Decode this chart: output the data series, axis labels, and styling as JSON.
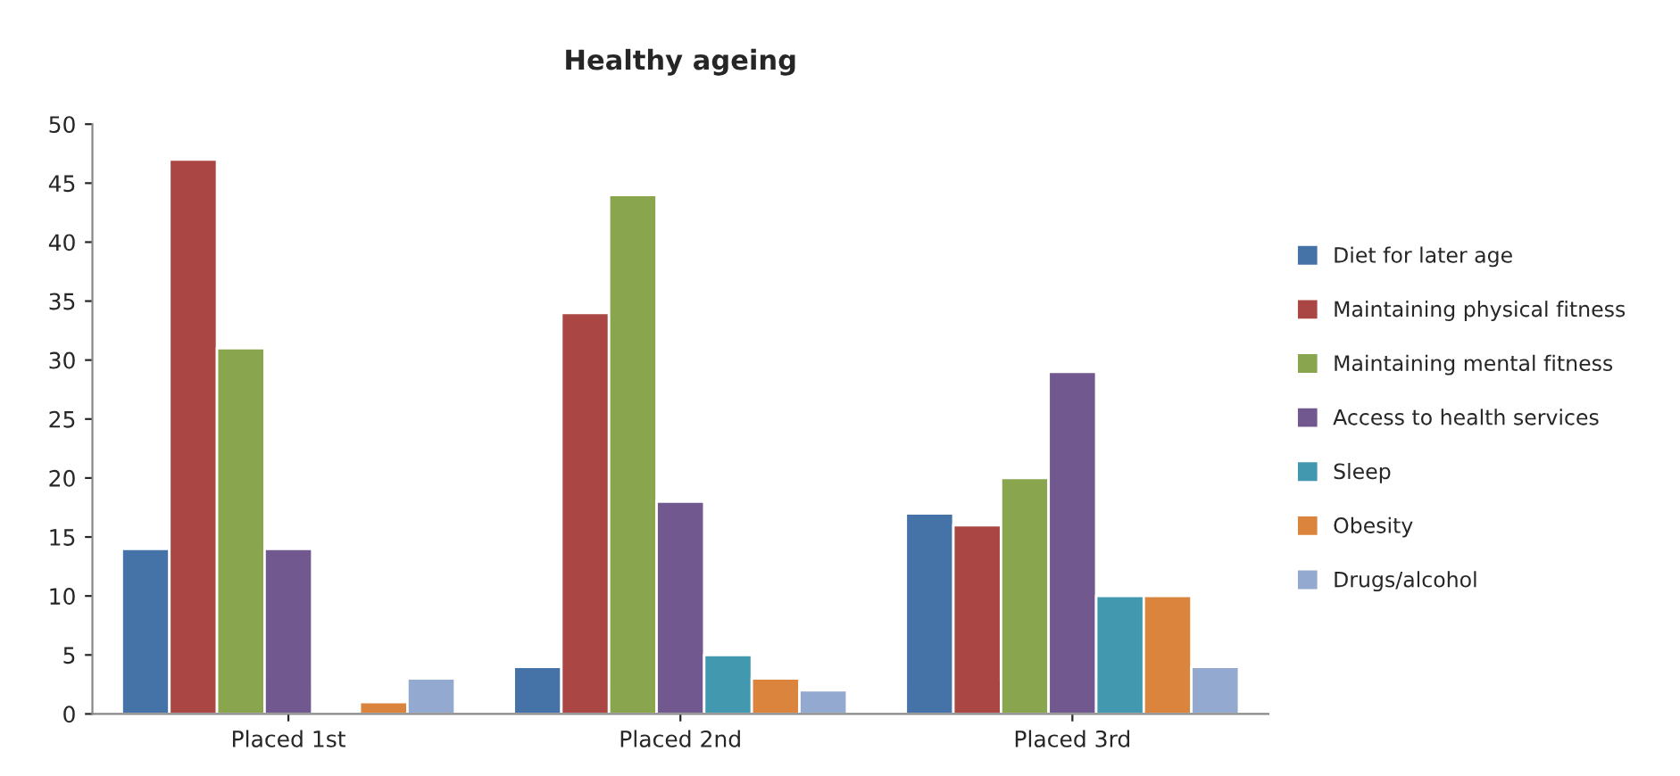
{
  "chart_data": {
    "type": "bar",
    "title": "Healthy ageing",
    "categories": [
      "Placed 1st",
      "Placed 2nd",
      "Placed 3rd"
    ],
    "series": [
      {
        "name": "Diet for later age",
        "color": "#4572a7",
        "values": [
          14,
          4,
          17
        ]
      },
      {
        "name": "Maintaining physical fitness",
        "color": "#aa4643",
        "values": [
          47,
          34,
          16
        ]
      },
      {
        "name": "Maintaining mental fitness",
        "color": "#89a54e",
        "values": [
          31,
          44,
          20
        ]
      },
      {
        "name": "Access to health services",
        "color": "#71588f",
        "values": [
          14,
          18,
          29
        ]
      },
      {
        "name": "Sleep",
        "color": "#4198af",
        "values": [
          null,
          5,
          10
        ]
      },
      {
        "name": "Obesity",
        "color": "#db843d",
        "values": [
          1,
          3,
          10
        ]
      },
      {
        "name": "Drugs/alcohol",
        "color": "#93a9cf",
        "values": [
          3,
          2,
          4
        ]
      }
    ],
    "ylim": [
      0,
      50
    ],
    "yticks": [
      0,
      5,
      10,
      15,
      20,
      25,
      30,
      35,
      40,
      45,
      50
    ],
    "grid": false,
    "legend": "right"
  }
}
